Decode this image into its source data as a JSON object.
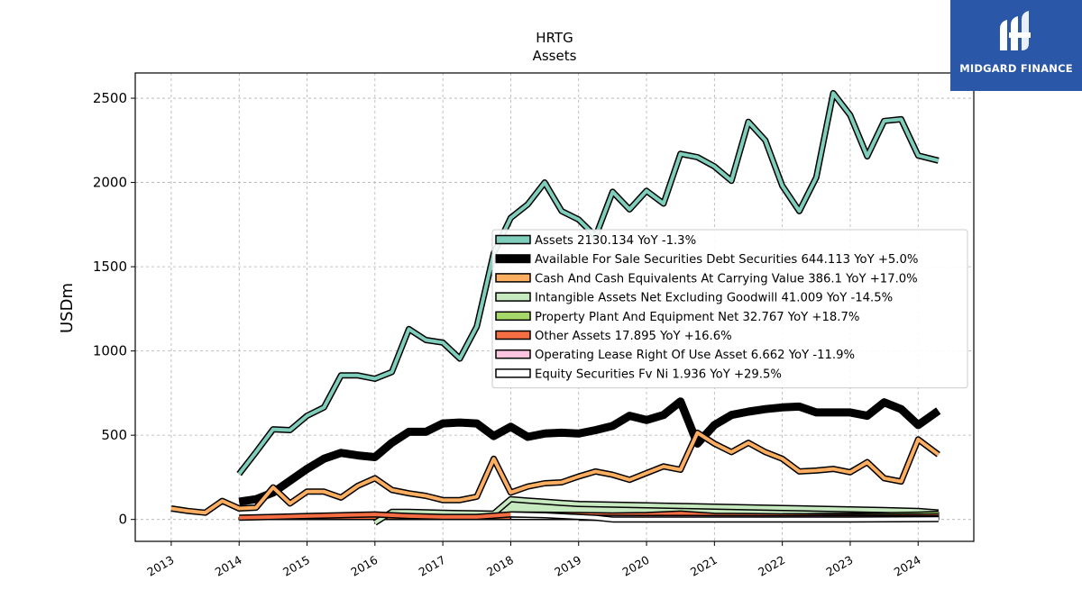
{
  "brand": {
    "name": "MIDGARD FINANCE",
    "icon": "midgard-logo-icon",
    "color": "#2b57a8"
  },
  "chart_data": {
    "type": "line",
    "title": "HRTG",
    "subtitle": "Assets",
    "ylabel": "USDm",
    "xlabel": "",
    "ylim": [
      -130,
      2650
    ],
    "xlim": [
      2012.47,
      2024.82
    ],
    "yticks": [
      0,
      500,
      1000,
      1500,
      2000,
      2500
    ],
    "xticks": [
      2013,
      2014,
      2015,
      2016,
      2017,
      2018,
      2019,
      2020,
      2021,
      2022,
      2023,
      2024
    ],
    "grid": true,
    "legend_position": "center-right",
    "series": [
      {
        "name": "Assets",
        "legend": "Assets  2130.134 YoY -1.3%",
        "color": "#7fcdbb",
        "width": 4,
        "x": [
          2014.0,
          2014.25,
          2014.5,
          2014.75,
          2015.0,
          2015.25,
          2015.5,
          2015.75,
          2016.0,
          2016.25,
          2016.5,
          2016.75,
          2017.0,
          2017.25,
          2017.5,
          2017.75,
          2018.0,
          2018.25,
          2018.5,
          2018.75,
          2019.0,
          2019.25,
          2019.5,
          2019.75,
          2020.0,
          2020.25,
          2020.5,
          2020.75,
          2021.0,
          2021.25,
          2021.5,
          2021.75,
          2022.0,
          2022.25,
          2022.5,
          2022.75,
          2023.0,
          2023.25,
          2023.5,
          2023.75,
          2024.0,
          2024.3
        ],
        "y": [
          270,
          400,
          535,
          530,
          615,
          665,
          855,
          855,
          835,
          875,
          1130,
          1065,
          1050,
          955,
          1145,
          1580,
          1790,
          1870,
          2000,
          1830,
          1780,
          1680,
          1945,
          1840,
          1950,
          1875,
          2170,
          2150,
          2095,
          2010,
          2360,
          2250,
          1980,
          1830,
          2030,
          2530,
          2400,
          2155,
          2365,
          2375,
          2160,
          2130
        ]
      },
      {
        "name": "Available For Sale Securities Debt Securities",
        "legend": "Available For Sale Securities Debt Securities  644.113 YoY +5.0%",
        "color": "#000000",
        "width": 9,
        "x": [
          2014.0,
          2014.25,
          2014.5,
          2014.75,
          2015.0,
          2015.25,
          2015.5,
          2015.75,
          2016.0,
          2016.25,
          2016.5,
          2016.75,
          2017.0,
          2017.25,
          2017.5,
          2017.75,
          2018.0,
          2018.25,
          2018.5,
          2018.75,
          2019.0,
          2019.25,
          2019.5,
          2019.75,
          2020.0,
          2020.25,
          2020.5,
          2020.75,
          2021.0,
          2021.25,
          2021.5,
          2021.75,
          2022.0,
          2022.25,
          2022.5,
          2022.75,
          2023.0,
          2023.25,
          2023.5,
          2023.75,
          2024.0,
          2024.3
        ],
        "y": [
          105,
          120,
          160,
          230,
          300,
          360,
          395,
          380,
          370,
          455,
          520,
          520,
          570,
          575,
          570,
          495,
          550,
          490,
          510,
          515,
          510,
          530,
          555,
          615,
          590,
          620,
          700,
          450,
          560,
          620,
          640,
          655,
          665,
          670,
          635,
          635,
          635,
          615,
          695,
          655,
          560,
          645
        ]
      },
      {
        "name": "Cash And Cash Equivalents At Carrying Value",
        "legend": "Cash And Cash Equivalents At Carrying Value  386.1 YoY +17.0%",
        "color": "#fdae61",
        "width": 4,
        "x": [
          2013.0,
          2013.25,
          2013.5,
          2013.75,
          2014.0,
          2014.25,
          2014.5,
          2014.75,
          2015.0,
          2015.25,
          2015.5,
          2015.75,
          2016.0,
          2016.25,
          2016.5,
          2016.75,
          2017.0,
          2017.25,
          2017.5,
          2017.75,
          2018.0,
          2018.25,
          2018.5,
          2018.75,
          2019.0,
          2019.25,
          2019.5,
          2019.75,
          2020.0,
          2020.25,
          2020.5,
          2020.75,
          2021.0,
          2021.25,
          2021.5,
          2021.75,
          2022.0,
          2022.25,
          2022.5,
          2022.75,
          2023.0,
          2023.25,
          2023.5,
          2023.75,
          2024.0,
          2024.3
        ],
        "y": [
          65,
          50,
          40,
          110,
          65,
          70,
          190,
          95,
          165,
          165,
          130,
          200,
          245,
          175,
          155,
          140,
          115,
          115,
          135,
          360,
          160,
          195,
          215,
          220,
          255,
          285,
          265,
          235,
          275,
          315,
          295,
          515,
          450,
          400,
          455,
          400,
          360,
          285,
          290,
          300,
          280,
          340,
          245,
          225,
          475,
          385
        ]
      },
      {
        "name": "Intangible Assets Net Excluding Goodwill",
        "legend": "Intangible Assets Net Excluding Goodwill  41.009 YoY -14.5%",
        "color": "#c7e9c0",
        "width": 4,
        "fill": true,
        "x": [
          2016.0,
          2016.25,
          2016.5,
          2016.75,
          2017.0,
          2017.25,
          2017.5,
          2017.75,
          2018.0,
          2018.25,
          2018.5,
          2018.75,
          2019.0,
          2019.5,
          2020.0,
          2020.5,
          2021.0,
          2021.5,
          2022.0,
          2022.5,
          2023.0,
          2023.5,
          2024.0,
          2024.3
        ],
        "y": [
          -20,
          45,
          45,
          42,
          40,
          38,
          36,
          34,
          120,
          112,
          105,
          98,
          92,
          88,
          84,
          80,
          76,
          72,
          68,
          64,
          60,
          56,
          50,
          41
        ]
      },
      {
        "name": "Property Plant And Equipment Net",
        "legend": "Property Plant And Equipment Net  32.767 YoY +18.7%",
        "color": "#a6d96a",
        "width": 4,
        "x": [
          2022.0,
          2022.5,
          2023.0,
          2023.5,
          2024.0,
          2024.3
        ],
        "y": [
          18,
          20,
          22,
          25,
          28,
          33
        ]
      },
      {
        "name": "Other Assets",
        "legend": "Other Assets  17.895 YoY +16.6%",
        "color": "#f46d43",
        "width": 4,
        "fill": true,
        "x": [
          2014.0,
          2014.5,
          2015.0,
          2015.5,
          2016.0,
          2016.5,
          2017.0,
          2017.5,
          2018.0,
          2018.5,
          2019.0,
          2019.5,
          2020.0,
          2020.5,
          2021.0,
          2021.5,
          2022.0,
          2022.5,
          2023.0,
          2023.5,
          2024.0,
          2024.3
        ],
        "y": [
          10,
          15,
          20,
          25,
          30,
          20,
          15,
          15,
          30,
          28,
          26,
          24,
          26,
          35,
          22,
          20,
          18,
          17,
          16,
          16,
          17,
          18
        ]
      },
      {
        "name": "Operating Lease Right Of Use Asset",
        "legend": "Operating Lease Right Of Use Asset  6.662 YoY -11.9%",
        "color": "#fcc5e0",
        "width": 4,
        "x": [
          2019.0,
          2020.0,
          2021.0,
          2022.0,
          2023.0,
          2024.0,
          2024.3
        ],
        "y": [
          10,
          9,
          8.5,
          8,
          7.5,
          7,
          6.7
        ]
      },
      {
        "name": "Equity Securities Fv Ni",
        "legend": "Equity Securities Fv Ni  1.936 YoY +29.5%",
        "color": "#ffffff",
        "width": 4,
        "fill": true,
        "x": [
          2018.0,
          2018.5,
          2019.0,
          2019.25,
          2019.5,
          2020.0,
          2021.0,
          2022.0,
          2023.0,
          2024.0,
          2024.3
        ],
        "y": [
          30,
          25,
          15,
          10,
          0,
          0,
          0,
          0,
          0,
          1.5,
          1.9
        ]
      }
    ]
  }
}
